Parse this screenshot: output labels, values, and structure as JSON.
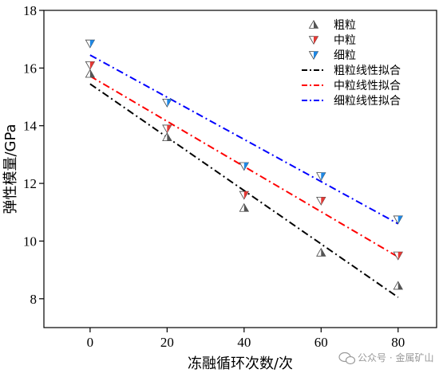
{
  "chart_data": {
    "type": "scatter",
    "xlabel": "冻融循环次数/次",
    "ylabel": "弹性模量/GPa",
    "xlim": [
      -12,
      90
    ],
    "ylim": [
      7,
      18
    ],
    "xticks": [
      0,
      20,
      40,
      60,
      80
    ],
    "yticks": [
      8,
      10,
      12,
      14,
      16,
      18
    ],
    "grid": false,
    "legend_position": "top-right",
    "series": [
      {
        "name": "粗粒",
        "kind": "points",
        "marker": "triangle-up",
        "fill": "#555555",
        "x": [
          0,
          20,
          40,
          60,
          80
        ],
        "values": [
          15.8,
          13.6,
          11.15,
          9.6,
          8.45
        ]
      },
      {
        "name": "中粒",
        "kind": "points",
        "marker": "triangle-down",
        "fill": "#e53935",
        "x": [
          0,
          20,
          40,
          60,
          80
        ],
        "values": [
          16.1,
          13.9,
          11.6,
          11.4,
          9.5
        ]
      },
      {
        "name": "细粒",
        "kind": "points",
        "marker": "triangle-down",
        "fill": "#1e88e5",
        "x": [
          0,
          20,
          40,
          60,
          80
        ],
        "values": [
          16.85,
          14.8,
          12.6,
          12.25,
          10.75
        ]
      },
      {
        "name": "粗粒线性拟合",
        "kind": "line",
        "stroke": "#000000",
        "x": [
          0,
          80
        ],
        "values": [
          15.45,
          8.05
        ]
      },
      {
        "name": "中粒线性拟合",
        "kind": "line",
        "stroke": "#ff0000",
        "x": [
          0,
          80
        ],
        "values": [
          15.72,
          9.45
        ]
      },
      {
        "name": "细粒线性拟合",
        "kind": "line",
        "stroke": "#0000ff",
        "x": [
          0,
          80
        ],
        "values": [
          16.45,
          10.6
        ]
      }
    ]
  },
  "watermark": {
    "text": "公众号 · 金属矿山",
    "icon": "wechat-icon"
  }
}
